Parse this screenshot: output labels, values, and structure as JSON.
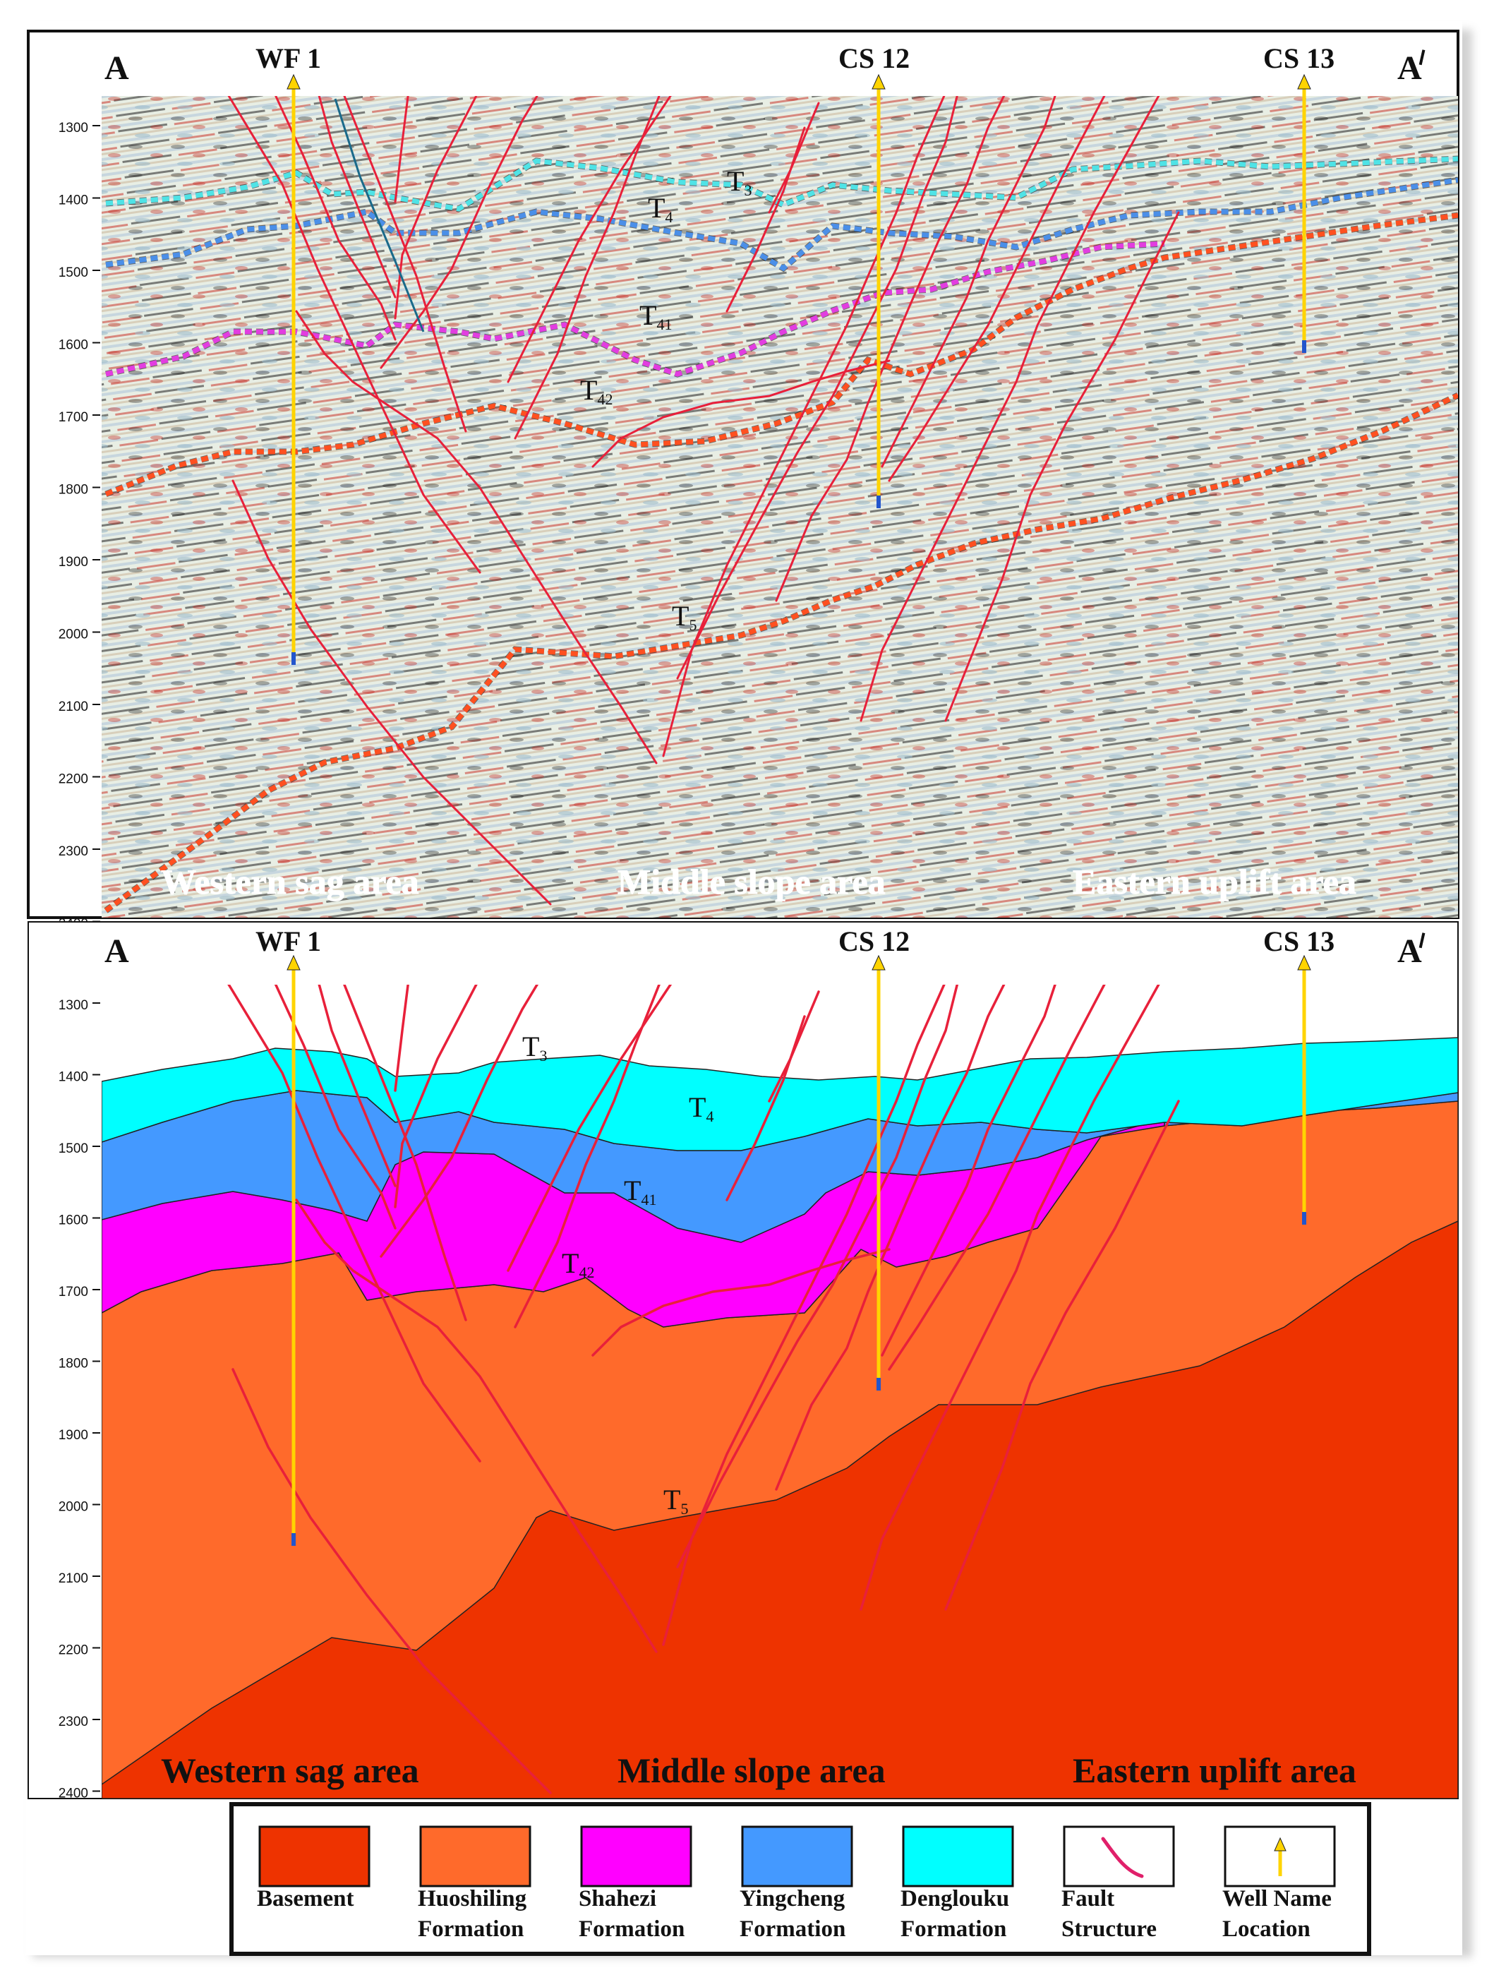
{
  "section": {
    "start_label": "A",
    "end_label": "A/",
    "wells": [
      {
        "name": "WF 1"
      },
      {
        "name": "CS 12"
      },
      {
        "name": "CS 13"
      }
    ],
    "depth_ticks": [
      "1300",
      "1400",
      "1500",
      "1600",
      "1700",
      "1800",
      "1900",
      "2000",
      "2100",
      "2200",
      "2300",
      "2400"
    ],
    "areas": [
      "Western sag area",
      "Middle slope area",
      "Eastern uplift area"
    ],
    "horizons": [
      {
        "base": "T",
        "sub": "3"
      },
      {
        "base": "T",
        "sub": "4"
      },
      {
        "base": "T",
        "sub": "41"
      },
      {
        "base": "T",
        "sub": "42"
      },
      {
        "base": "T",
        "sub": "5"
      }
    ]
  },
  "colors": {
    "basement": "#ee3300",
    "huoshiling": "#ff6a2b",
    "shahezi": "#ff00ff",
    "yingcheng": "#4499ff",
    "denglouku": "#00ffff",
    "fault": "#e8203a",
    "well": "#ffd400",
    "seismic_bg": "#e6ece2",
    "area_text_top": "#ffffff",
    "area_text_bottom": "#111111"
  },
  "legend": [
    {
      "type": "swatch",
      "color": "#ee3300",
      "line1": "Basement",
      "line2": ""
    },
    {
      "type": "swatch",
      "color": "#ff6a2b",
      "line1": "Huoshiling",
      "line2": "Formation"
    },
    {
      "type": "swatch",
      "color": "#ff00ff",
      "line1": "Shahezi",
      "line2": "Formation"
    },
    {
      "type": "swatch",
      "color": "#4499ff",
      "line1": "Yingcheng",
      "line2": "Formation"
    },
    {
      "type": "swatch",
      "color": "#00ffff",
      "line1": "Denglouku",
      "line2": "Formation"
    },
    {
      "type": "fault-icon",
      "color": "",
      "line1": "Fault",
      "line2": "Structure"
    },
    {
      "type": "well-icon",
      "color": "",
      "line1": "Well Name",
      "line2": "Location"
    }
  ]
}
